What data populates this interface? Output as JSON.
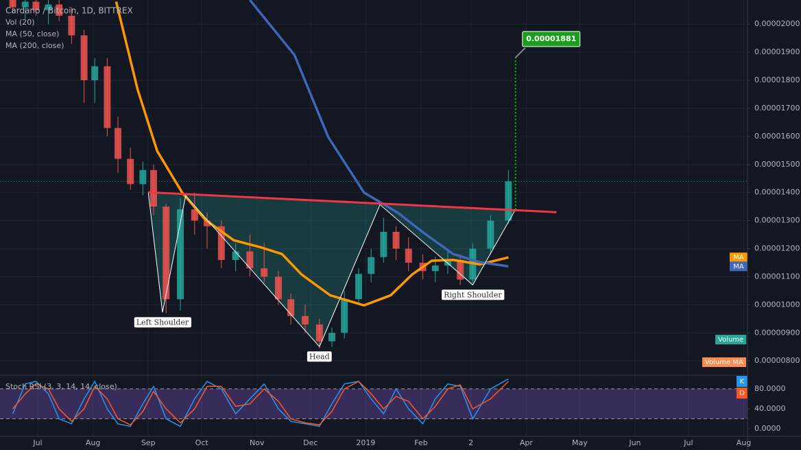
{
  "chart_data": [
    {
      "type": "candlestick",
      "title": "Cardano / Bitcoin, 1D, BITTREX",
      "legend": [
        "Vol (20)",
        "MA (50, close)",
        "MA (200, close)"
      ],
      "x": [
        -14,
        -7,
        -1,
        6,
        12,
        19,
        26,
        32,
        39,
        45,
        52,
        59,
        65,
        72,
        80,
        88,
        95,
        103,
        111,
        119,
        127,
        135,
        142,
        150,
        158,
        165,
        172,
        180,
        187,
        194,
        201,
        208,
        216,
        223,
        230,
        237,
        244,
        254,
        264
      ],
      "open": [
        2.1e-05,
        2.06e-05,
        2.08e-05,
        2.05e-05,
        2.07e-05,
        2.03e-05,
        1.96e-05,
        1.8e-05,
        1.85e-05,
        1.63e-05,
        1.52e-05,
        1.43e-05,
        1.48e-05,
        1.35e-05,
        1.02e-05,
        1.34e-05,
        1.3e-05,
        1.28e-05,
        1.16e-05,
        1.19e-05,
        1.13e-05,
        1.1e-05,
        1.02e-05,
        9.6e-06,
        9.3e-06,
        8.7e-06,
        9e-06,
        1.02e-05,
        1.11e-05,
        1.17e-05,
        1.26e-05,
        1.2e-05,
        1.15e-05,
        1.12e-05,
        1.14e-05,
        1.16e-05,
        1.09e-05,
        1.2e-05,
        1.3e-05
      ],
      "high": [
        2.14e-05,
        2.12e-05,
        2.13e-05,
        2.1e-05,
        2.11e-05,
        2.06e-05,
        1.98e-05,
        1.88e-05,
        1.88e-05,
        1.67e-05,
        1.56e-05,
        1.51e-05,
        1.5e-05,
        1.36e-05,
        1.38e-05,
        1.4e-05,
        1.33e-05,
        1.3e-05,
        1.22e-05,
        1.25e-05,
        1.22e-05,
        1.12e-05,
        1.04e-05,
        1e-05,
        9.5e-06,
        9.2e-06,
        1.05e-05,
        1.13e-05,
        1.2e-05,
        1.31e-05,
        1.28e-05,
        1.24e-05,
        1.18e-05,
        1.17e-05,
        1.19e-05,
        1.18e-05,
        1.22e-05,
        1.32e-05,
        1.48e-05
      ],
      "low": [
        2.04e-05,
        2.02e-05,
        2.03e-05,
        2e-05,
        2.01e-05,
        1.93e-05,
        1.72e-05,
        1.72e-05,
        1.6e-05,
        1.47e-05,
        1.41e-05,
        1.39e-05,
        1.32e-05,
        9.7e-06,
        9.8e-06,
        1.25e-05,
        1.2e-05,
        1.13e-05,
        1.12e-05,
        1.1e-05,
        1.08e-05,
        1e-05,
        9.3e-06,
        9e-06,
        8.45e-06,
        8.5e-06,
        8.8e-06,
        1e-05,
        1.08e-05,
        1.15e-05,
        1.16e-05,
        1.12e-05,
        1.09e-05,
        1.08e-05,
        1.11e-05,
        1.07e-05,
        1.08e-05,
        1.18e-05,
        1.29e-05
      ],
      "close": [
        2.06e-05,
        2.08e-05,
        2.05e-05,
        2.07e-05,
        2.03e-05,
        1.96e-05,
        1.8e-05,
        1.85e-05,
        1.63e-05,
        1.52e-05,
        1.43e-05,
        1.48e-05,
        1.35e-05,
        1.02e-05,
        1.34e-05,
        1.3e-05,
        1.28e-05,
        1.16e-05,
        1.19e-05,
        1.13e-05,
        1.1e-05,
        1.02e-05,
        9.6e-06,
        9.3e-06,
        8.7e-06,
        9e-06,
        1.02e-05,
        1.11e-05,
        1.17e-05,
        1.26e-05,
        1.2e-05,
        1.15e-05,
        1.12e-05,
        1.14e-05,
        1.16e-05,
        1.09e-05,
        1.2e-05,
        1.3e-05,
        1.44e-05
      ],
      "up_color": "#26a69a",
      "down_color": "#ef5350",
      "series": [
        {
          "name": "MA",
          "color": "#ff9800",
          "x": [
            44,
            56,
            67,
            81,
            94,
            110,
            125,
            137,
            148,
            164,
            183,
            198,
            210,
            221,
            233,
            248,
            264
          ],
          "values": [
            2.08e-05,
            1.768e-05,
            1.548e-05,
            1.4e-05,
            1.303e-05,
            1.23e-05,
            1.205e-05,
            1.181e-05,
            1.108e-05,
            1.034e-05,
            9.98e-06,
            1.034e-05,
            1.108e-05,
            1.157e-05,
            1.16e-05,
            1.144e-05,
            1.169e-05
          ]
        },
        {
          "name": "MA",
          "color": "#3f66b8",
          "x": [
            119,
            144,
            163,
            183,
            202,
            217,
            233,
            248,
            264
          ],
          "values": [
            2.086e-05,
            1.89e-05,
            1.597e-05,
            1.4e-05,
            1.328e-05,
            1.254e-05,
            1.181e-05,
            1.152e-05,
            1.137e-05
          ]
        }
      ],
      "last_price": 1.44e-05,
      "neckline": {
        "color": "#f23645",
        "x": [
          62,
          291
        ],
        "values": [
          1.401e-05,
          1.33e-05
        ]
      },
      "pattern": {
        "x": [
          62,
          70,
          83,
          158,
          192,
          244,
          268
        ],
        "values": [
          1.401e-05,
          9.73e-06,
          1.389e-05,
          8.51e-06,
          1.357e-05,
          1.071e-05,
          1.34e-05
        ]
      },
      "annotations": [
        "Left Shoulder",
        "Head",
        "Right Shoulder"
      ],
      "target": {
        "value": 1.881e-05,
        "label": "0.00001881"
      },
      "volume_tags": [
        "Volume",
        "Volume MA"
      ],
      "xlim": [
        -21.15,
        398.1
      ],
      "xticks": [
        {
          "value": 0,
          "label": "Jul"
        },
        {
          "value": 31,
          "label": "Aug"
        },
        {
          "value": 62,
          "label": "Sep"
        },
        {
          "value": 92,
          "label": "Oct"
        },
        {
          "value": 123,
          "label": "Nov"
        },
        {
          "value": 153,
          "label": "Dec"
        },
        {
          "value": 184,
          "label": "2019"
        },
        {
          "value": 215,
          "label": "Feb"
        },
        {
          "value": 243,
          "label": "2"
        },
        {
          "value": 274,
          "label": "Apr"
        },
        {
          "value": 304,
          "label": "May"
        },
        {
          "value": 335,
          "label": "Jun"
        },
        {
          "value": 365,
          "label": "Jul"
        },
        {
          "value": 396,
          "label": "Aug"
        }
      ],
      "ylim": [
        7.54e-06,
        2.086e-05
      ],
      "yticks": [
        {
          "value": 2e-05,
          "label": "0.00002000"
        },
        {
          "value": 1.9e-05,
          "label": "0.00001900"
        },
        {
          "value": 1.8e-05,
          "label": "0.00001800"
        },
        {
          "value": 1.7e-05,
          "label": "0.00001700"
        },
        {
          "value": 1.6e-05,
          "label": "0.00001600"
        },
        {
          "value": 1.5e-05,
          "label": "0.00001500"
        },
        {
          "value": 1.4e-05,
          "label": "0.00001400"
        },
        {
          "value": 1.3e-05,
          "label": "0.00001300"
        },
        {
          "value": 1.2e-05,
          "label": "0.00001200"
        },
        {
          "value": 1.1e-05,
          "label": "0.00001100"
        },
        {
          "value": 1e-05,
          "label": "0.00001000"
        },
        {
          "value": 9e-06,
          "label": "0.00000900"
        },
        {
          "value": 8e-06,
          "label": "0.00000800"
        }
      ],
      "grid": true
    },
    {
      "type": "line",
      "title": "Stoch RSI (3, 3, 14, 14, close)",
      "x": [
        -14,
        -7,
        -1,
        6,
        12,
        19,
        26,
        32,
        39,
        45,
        52,
        59,
        65,
        72,
        80,
        88,
        95,
        103,
        111,
        119,
        127,
        135,
        142,
        150,
        158,
        165,
        172,
        180,
        187,
        194,
        201,
        208,
        216,
        223,
        230,
        237,
        244,
        254,
        264
      ],
      "series": [
        {
          "name": "K",
          "color": "#2196f3",
          "values": [
            30,
            90,
            95,
            70,
            20,
            10,
            60,
            95,
            40,
            10,
            5,
            50,
            85,
            20,
            5,
            60,
            95,
            80,
            30,
            60,
            90,
            40,
            15,
            10,
            5,
            50,
            90,
            95,
            60,
            30,
            80,
            40,
            10,
            60,
            90,
            85,
            20,
            80,
            100
          ]
        },
        {
          "name": "D",
          "color": "#ff5722",
          "values": [
            40,
            70,
            90,
            80,
            40,
            15,
            40,
            85,
            60,
            20,
            8,
            35,
            75,
            40,
            12,
            40,
            85,
            85,
            45,
            50,
            80,
            55,
            20,
            12,
            8,
            35,
            80,
            95,
            70,
            40,
            65,
            55,
            20,
            45,
            80,
            88,
            40,
            60,
            95
          ]
        }
      ],
      "bands": [
        20,
        80
      ],
      "ylim": [
        -15,
        106
      ],
      "yticks": [
        {
          "value": 80,
          "label": "80.0000"
        },
        {
          "value": 40,
          "label": "40.0000"
        },
        {
          "value": 0,
          "label": "0.0000"
        }
      ]
    }
  ]
}
